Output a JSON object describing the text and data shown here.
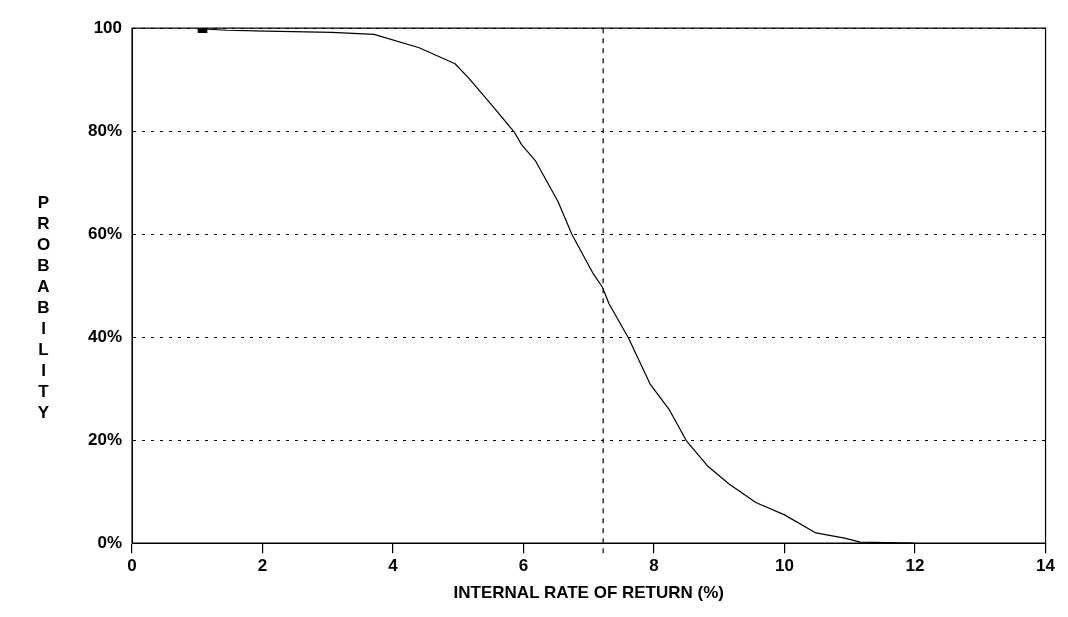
{
  "chart_data": {
    "type": "line",
    "xlabel": "INTERNAL RATE OF RETURN (%)",
    "ylabel": "PROBABILITY",
    "xlim": [
      0,
      14
    ],
    "xticks": [
      0,
      2,
      4,
      6,
      8,
      10,
      12,
      14
    ],
    "ylim": [
      0,
      100
    ],
    "yticks": [
      {
        "value": 0,
        "label": "0%"
      },
      {
        "value": 20,
        "label": "20%"
      },
      {
        "value": 40,
        "label": "40%"
      },
      {
        "value": 60,
        "label": "60%"
      },
      {
        "value": 80,
        "label": "80%"
      },
      {
        "value": 100,
        "label": "100"
      }
    ],
    "grid": "y",
    "legend": false,
    "ref_lines": [
      {
        "axis": "x",
        "value": 7.22,
        "line_style": "dashed",
        "color": "#000000"
      }
    ],
    "series": [
      {
        "color": "#000000",
        "marker": "none",
        "line_style": "solid",
        "x": [
          1.08,
          1.16,
          1.45,
          3.06,
          3.71,
          4.4,
          4.95,
          5.16,
          5.53,
          5.86,
          5.97,
          6.18,
          6.53,
          6.74,
          7.06,
          7.21,
          7.31,
          7.61,
          7.94,
          8.23,
          8.5,
          8.82,
          9.15,
          9.56,
          10.0,
          10.48,
          10.92,
          11.16,
          11.98
        ],
        "values": [
          100,
          99.8,
          99.6,
          99.2,
          98.8,
          96.2,
          93.1,
          90.3,
          84.8,
          79.8,
          77.4,
          74.3,
          66.3,
          60,
          52.5,
          49.7,
          46.5,
          39.8,
          30.9,
          26,
          19.8,
          15,
          11.5,
          7.9,
          5.5,
          2,
          1,
          0.2,
          0
        ]
      },
      {
        "type": "scatter",
        "color": "#000000",
        "marker": "square",
        "x": [
          1.08
        ],
        "values": [
          100
        ]
      }
    ]
  }
}
